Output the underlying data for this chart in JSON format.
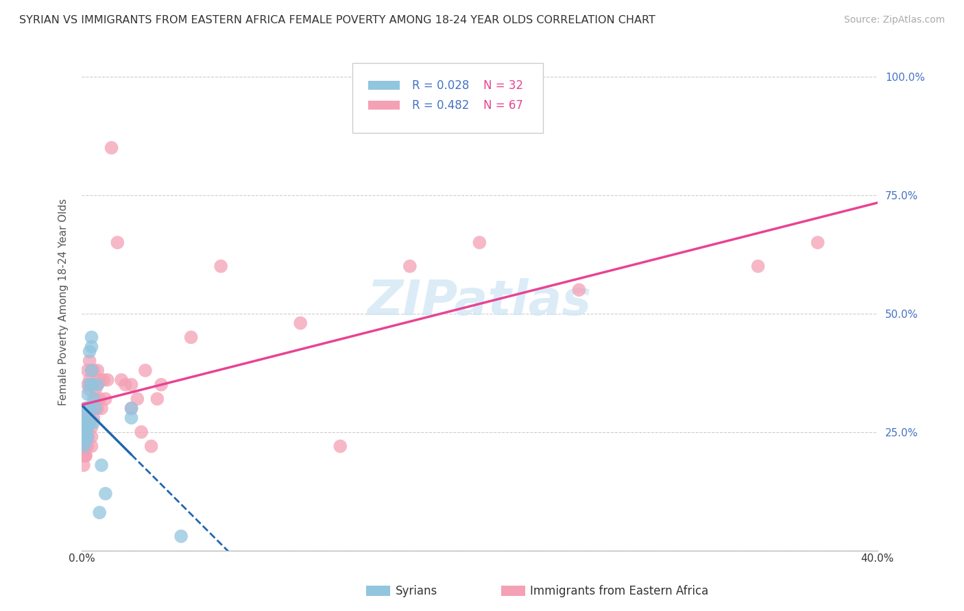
{
  "title": "SYRIAN VS IMMIGRANTS FROM EASTERN AFRICA FEMALE POVERTY AMONG 18-24 YEAR OLDS CORRELATION CHART",
  "source": "Source: ZipAtlas.com",
  "ylabel": "Female Poverty Among 18-24 Year Olds",
  "xlabel_ticks": [
    "0.0%",
    "",
    "",
    "",
    "",
    "",
    "",
    "",
    "40.0%"
  ],
  "xlabel_vals": [
    0.0,
    0.05,
    0.1,
    0.15,
    0.2,
    0.25,
    0.3,
    0.35,
    0.4
  ],
  "ylabel_ticks_right": [
    "100.0%",
    "75.0%",
    "50.0%",
    "25.0%",
    ""
  ],
  "ylabel_vals": [
    1.0,
    0.75,
    0.5,
    0.25,
    0.0
  ],
  "xlim": [
    0.0,
    0.4
  ],
  "ylim": [
    0.0,
    1.05
  ],
  "R_syrian": 0.028,
  "N_syrian": 32,
  "R_eastern": 0.482,
  "N_eastern": 67,
  "color_syrian": "#92c5de",
  "color_eastern": "#f4a0b5",
  "line_color_syrian": "#2166ac",
  "line_color_eastern": "#e84393",
  "legend_R_color": "#4472c4",
  "legend_N_color": "#e84393",
  "watermark_text": "ZIPatlas",
  "watermark_color": "#cce5f5",
  "syrians_x": [
    0.001,
    0.001,
    0.001,
    0.001,
    0.002,
    0.002,
    0.002,
    0.002,
    0.002,
    0.003,
    0.003,
    0.003,
    0.003,
    0.003,
    0.004,
    0.004,
    0.004,
    0.004,
    0.005,
    0.005,
    0.005,
    0.005,
    0.006,
    0.006,
    0.007,
    0.008,
    0.009,
    0.01,
    0.012,
    0.025,
    0.025,
    0.05
  ],
  "syrians_y": [
    0.24,
    0.26,
    0.27,
    0.22,
    0.25,
    0.28,
    0.26,
    0.3,
    0.23,
    0.27,
    0.3,
    0.33,
    0.24,
    0.26,
    0.3,
    0.35,
    0.27,
    0.42,
    0.35,
    0.43,
    0.38,
    0.45,
    0.32,
    0.27,
    0.3,
    0.35,
    0.08,
    0.18,
    0.12,
    0.3,
    0.28,
    0.03
  ],
  "eastern_x": [
    0.001,
    0.001,
    0.001,
    0.001,
    0.001,
    0.001,
    0.001,
    0.002,
    0.002,
    0.002,
    0.002,
    0.002,
    0.002,
    0.002,
    0.003,
    0.003,
    0.003,
    0.003,
    0.003,
    0.003,
    0.003,
    0.004,
    0.004,
    0.004,
    0.004,
    0.004,
    0.005,
    0.005,
    0.005,
    0.005,
    0.005,
    0.005,
    0.006,
    0.006,
    0.006,
    0.007,
    0.007,
    0.008,
    0.008,
    0.008,
    0.009,
    0.009,
    0.01,
    0.011,
    0.012,
    0.013,
    0.015,
    0.018,
    0.02,
    0.022,
    0.025,
    0.025,
    0.028,
    0.03,
    0.032,
    0.035,
    0.038,
    0.04,
    0.055,
    0.07,
    0.11,
    0.13,
    0.165,
    0.2,
    0.25,
    0.34,
    0.37
  ],
  "eastern_y": [
    0.24,
    0.26,
    0.2,
    0.22,
    0.18,
    0.28,
    0.25,
    0.2,
    0.22,
    0.26,
    0.24,
    0.2,
    0.28,
    0.3,
    0.22,
    0.26,
    0.28,
    0.3,
    0.24,
    0.35,
    0.38,
    0.28,
    0.3,
    0.34,
    0.36,
    0.4,
    0.22,
    0.24,
    0.26,
    0.3,
    0.35,
    0.38,
    0.28,
    0.3,
    0.38,
    0.34,
    0.32,
    0.3,
    0.35,
    0.38,
    0.36,
    0.32,
    0.3,
    0.36,
    0.32,
    0.36,
    0.85,
    0.65,
    0.36,
    0.35,
    0.3,
    0.35,
    0.32,
    0.25,
    0.38,
    0.22,
    0.32,
    0.35,
    0.45,
    0.6,
    0.48,
    0.22,
    0.6,
    0.65,
    0.55,
    0.6,
    0.65
  ]
}
